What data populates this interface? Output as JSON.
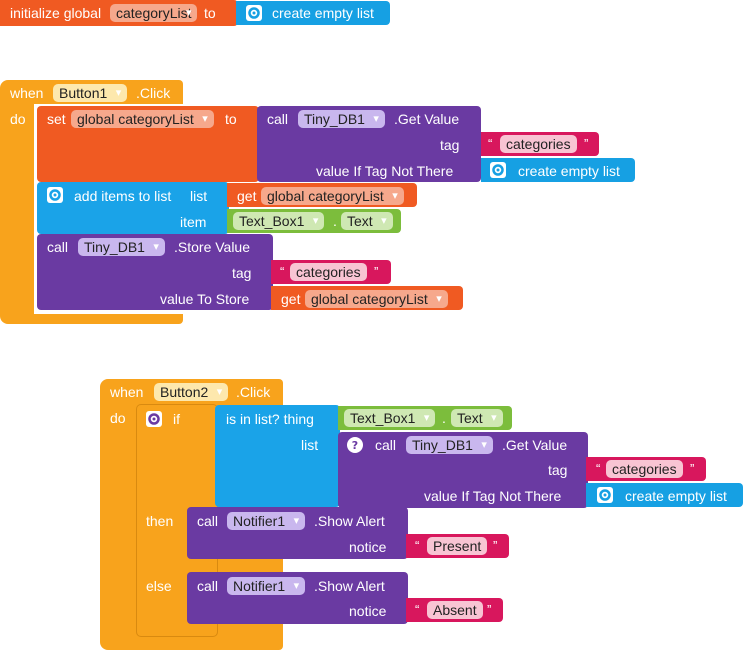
{
  "global_init": {
    "prefix": "initialize global",
    "var_name": "categoryList",
    "to": "to",
    "empty_list": "create empty list"
  },
  "button1": {
    "when": "when",
    "component": "Button1",
    "event": ".Click",
    "do": "do",
    "set": "set",
    "set_var": "global categoryList",
    "set_to": "to",
    "call": "call",
    "db": "Tiny_DB1",
    "get_value": ".Get Value",
    "tag": "tag",
    "tag_value": "categories",
    "value_if": "value If Tag Not There",
    "empty_list": "create empty list",
    "add_items": "add items to list",
    "list": "list",
    "get": "get",
    "get_var": "global categoryList",
    "item": "item",
    "textbox": "Text_Box1",
    "dot": ".",
    "text_prop": "Text",
    "store_call": "call",
    "store_db": "Tiny_DB1",
    "store_value": ".Store Value",
    "store_tag": "tag",
    "store_tag_value": "categories",
    "value_to_store": "value To Store",
    "store_get": "get",
    "store_get_var": "global categoryList"
  },
  "button2": {
    "when": "when",
    "component": "Button2",
    "event": ".Click",
    "do": "do",
    "if": "if",
    "is_in_list": "is in list? thing",
    "textbox": "Text_Box1",
    "dot": ".",
    "text_prop": "Text",
    "list": "list",
    "call": "call",
    "db": "Tiny_DB1",
    "get_value": ".Get Value",
    "tag": "tag",
    "tag_value": "categories",
    "value_if": "value If Tag Not There",
    "empty_list": "create empty list",
    "then": "then",
    "notifier_call1": "call",
    "notifier1": "Notifier1",
    "show_alert1": ".Show Alert",
    "notice1": "notice",
    "present": "Present",
    "else": "else",
    "notifier_call2": "call",
    "notifier2": "Notifier1",
    "show_alert2": ".Show Alert",
    "notice2": "notice",
    "absent": "Absent"
  },
  "quote_open": "“",
  "quote_close": "”"
}
